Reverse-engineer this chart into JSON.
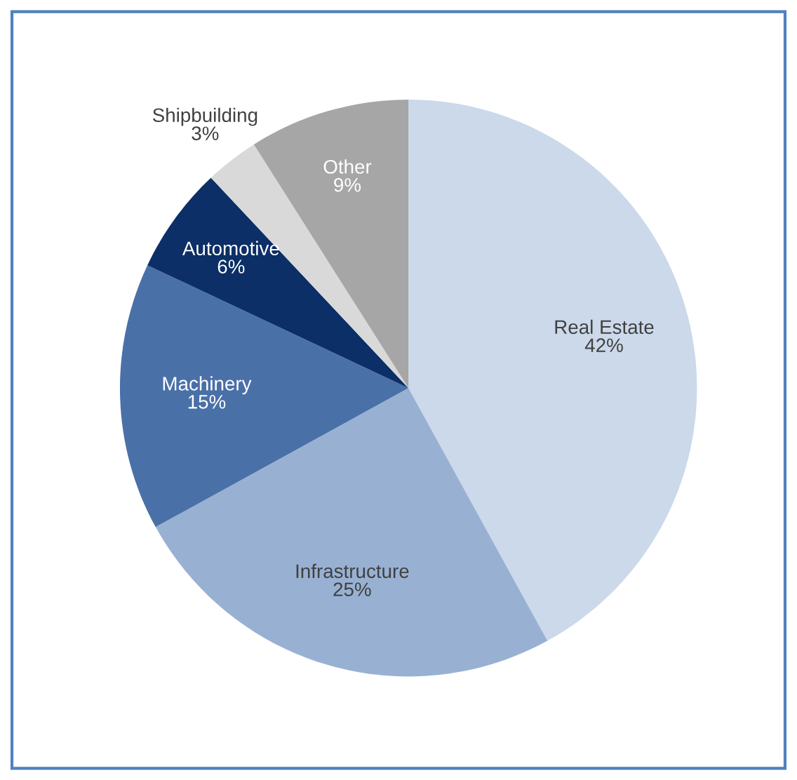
{
  "chart_data": {
    "type": "pie",
    "categories": [
      "Real Estate",
      "Infrastructure",
      "Machinery",
      "Automotive",
      "Shipbuilding",
      "Other"
    ],
    "values": [
      42,
      25,
      15,
      6,
      3,
      9
    ],
    "value_labels": [
      "42%",
      "25%",
      "15%",
      "6%",
      "3%",
      "9%"
    ],
    "colors": [
      "#cbd9ea",
      "#98b1d3",
      "#4a70a8",
      "#0b2f66",
      "#d9d9d9",
      "#a6a6a6"
    ],
    "legend": false
  }
}
